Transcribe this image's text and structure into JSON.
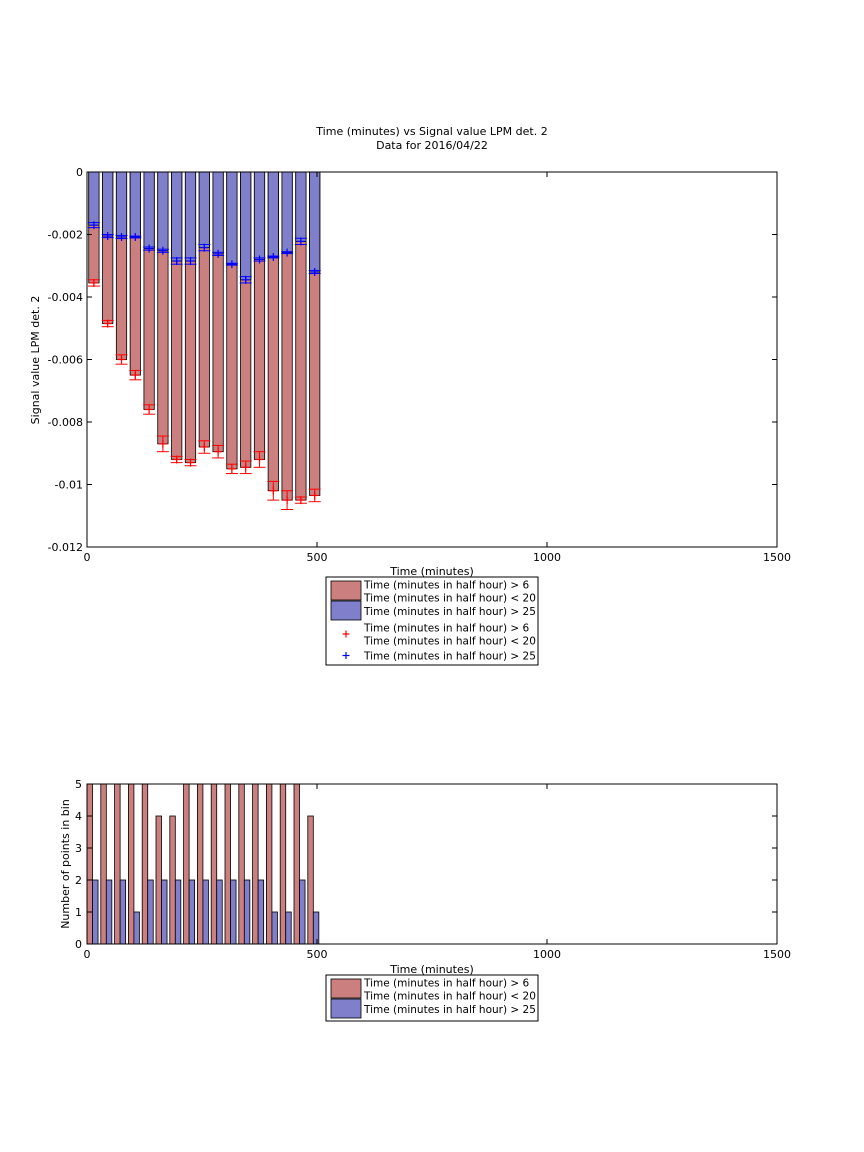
{
  "chart_data": [
    {
      "type": "bar",
      "title": "Time (minutes) vs Signal value LPM det. 2",
      "subtitle": "Data for 2016/04/22",
      "xlabel": "Time (minutes)",
      "ylabel": "Signal value LPM det. 2",
      "xlim": [
        0,
        1500
      ],
      "ylim": [
        -0.012,
        0
      ],
      "xticks": [
        "0",
        "500",
        "1000",
        "1500"
      ],
      "yticks": [
        "0",
        "-0.002",
        "-0.004",
        "-0.006",
        "-0.008",
        "-0.01",
        "-0.012"
      ],
      "bar_width": 22.5,
      "grid": false,
      "legend_position": "bottom-center",
      "x": [
        15,
        45,
        75,
        105,
        135,
        165,
        195,
        225,
        255,
        285,
        315,
        345,
        375,
        405,
        435,
        465,
        495
      ],
      "series": [
        {
          "name": "Time (minutes in half hour) > 6\nTime (minutes in half hour) < 20",
          "color": "#cc7f7f",
          "marker_color": "#ff0000",
          "values": [
            -0.00355,
            -0.00485,
            -0.006,
            -0.0065,
            -0.0076,
            -0.0087,
            -0.0092,
            -0.0093,
            -0.0088,
            -0.00895,
            -0.0095,
            -0.00945,
            -0.0092,
            -0.0102,
            -0.0105,
            -0.0105,
            -0.01035
          ],
          "error": [
            0.0001,
            0.0001,
            0.00015,
            0.00015,
            0.00015,
            0.00025,
            0.0001,
            0.0001,
            0.0002,
            0.0002,
            0.00015,
            0.0002,
            0.00025,
            0.0003,
            0.0003,
            0.0001,
            0.0002
          ]
        },
        {
          "name": "Time (minutes in half hour) > 25",
          "color": "#7f7fcc",
          "marker_color": "#0000ff",
          "values": [
            -0.0017,
            -0.00205,
            -0.00208,
            -0.00208,
            -0.00245,
            -0.00252,
            -0.00285,
            -0.00285,
            -0.00242,
            -0.00262,
            -0.00295,
            -0.00345,
            -0.0028,
            -0.00272,
            -0.00258,
            -0.00222,
            -0.0032
          ],
          "error": [
            8e-05,
            5e-05,
            5e-05,
            3e-05,
            5e-05,
            5e-05,
            0.0001,
            0.0001,
            0.0001,
            5e-05,
            3e-05,
            0.0001,
            5e-05,
            3e-05,
            3e-05,
            0.0001,
            5e-05
          ]
        }
      ],
      "legend": {
        "entries": [
          {
            "kind": "patch",
            "series": 0,
            "lines": [
              "Time (minutes in half hour) > 6",
              "Time (minutes in half hour) < 20"
            ]
          },
          {
            "kind": "patch",
            "series": 1,
            "lines": [
              "Time (minutes in half hour) > 25"
            ]
          },
          {
            "kind": "marker",
            "series": 0,
            "lines": [
              "Time (minutes in half hour) > 6",
              "Time (minutes in half hour) < 20"
            ]
          },
          {
            "kind": "marker",
            "series": 1,
            "lines": [
              "Time (minutes in half hour) > 25"
            ]
          }
        ]
      }
    },
    {
      "type": "bar",
      "title": "",
      "xlabel": "Time (minutes)",
      "ylabel": "Number of points in bin",
      "xlim": [
        0,
        1500
      ],
      "ylim": [
        0,
        5
      ],
      "xticks": [
        "0",
        "500",
        "1000",
        "1500"
      ],
      "yticks": [
        "5",
        "4",
        "3",
        "2",
        "1",
        "0"
      ],
      "grid": false,
      "legend_position": "bottom-center",
      "bar_width": 12,
      "series": [
        {
          "name": "Time (minutes in half hour) > 6\nTime (minutes in half hour) < 20",
          "color": "#cc7f7f",
          "x": [
            6,
            36,
            66,
            96,
            126,
            156,
            186,
            216,
            246,
            276,
            306,
            336,
            366,
            396,
            426,
            456,
            486
          ],
          "values": [
            5,
            5,
            5,
            5,
            5,
            4,
            4,
            5,
            5,
            5,
            5,
            5,
            5,
            5,
            5,
            5,
            4
          ]
        },
        {
          "name": "Time (minutes in half hour) > 25",
          "color": "#7f7fcc",
          "x": [
            18,
            48,
            78,
            108,
            138,
            168,
            198,
            228,
            258,
            288,
            318,
            348,
            378,
            408,
            438,
            468,
            498
          ],
          "values": [
            2,
            2,
            2,
            1,
            2,
            2,
            2,
            2,
            2,
            2,
            2,
            2,
            2,
            1,
            1,
            2,
            1
          ]
        }
      ],
      "legend": {
        "entries": [
          {
            "kind": "patch",
            "series": 0,
            "lines": [
              "Time (minutes in half hour) > 6",
              "Time (minutes in half hour) < 20"
            ]
          },
          {
            "kind": "patch",
            "series": 1,
            "lines": [
              "Time (minutes in half hour) > 25"
            ]
          }
        ]
      }
    }
  ]
}
